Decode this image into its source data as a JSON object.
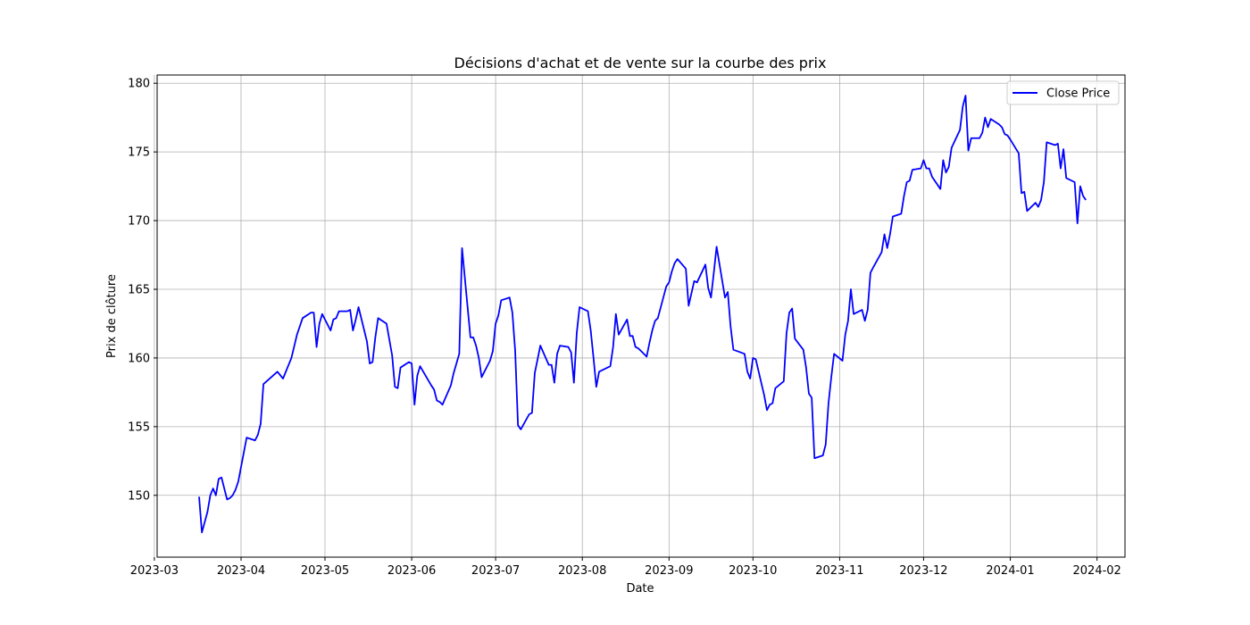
{
  "chart_data": {
    "type": "line",
    "title": "Décisions d'achat et de vente sur la courbe des prix",
    "xlabel": "Date",
    "ylabel": "Prix de clôture",
    "ylim": [
      145.5,
      180.6
    ],
    "xlim": [
      "2023-03-02",
      "2024-02-11"
    ],
    "grid": true,
    "legend_position": "top-right",
    "x_ticks": [
      "2023-03",
      "2023-04",
      "2023-05",
      "2023-06",
      "2023-07",
      "2023-08",
      "2023-09",
      "2023-10",
      "2023-11",
      "2023-12",
      "2024-01",
      "2024-02"
    ],
    "y_ticks": [
      150,
      155,
      160,
      165,
      170,
      175,
      180
    ],
    "series": [
      {
        "name": "Close Price",
        "color": "#0000ff",
        "points": [
          [
            "2023-03-17",
            149.9
          ],
          [
            "2023-03-18",
            147.3
          ],
          [
            "2023-03-20",
            148.8
          ],
          [
            "2023-03-21",
            150.0
          ],
          [
            "2023-03-22",
            150.5
          ],
          [
            "2023-03-23",
            150.0
          ],
          [
            "2023-03-24",
            151.2
          ],
          [
            "2023-03-25",
            151.3
          ],
          [
            "2023-03-27",
            149.7
          ],
          [
            "2023-03-28",
            149.8
          ],
          [
            "2023-03-29",
            150.0
          ],
          [
            "2023-03-30",
            150.4
          ],
          [
            "2023-03-31",
            151.0
          ],
          [
            "2023-04-03",
            154.2
          ],
          [
            "2023-04-06",
            154.0
          ],
          [
            "2023-04-07",
            154.4
          ],
          [
            "2023-04-08",
            155.2
          ],
          [
            "2023-04-09",
            158.1
          ],
          [
            "2023-04-14",
            159.0
          ],
          [
            "2023-04-16",
            158.5
          ],
          [
            "2023-04-19",
            160.0
          ],
          [
            "2023-04-21",
            161.7
          ],
          [
            "2023-04-23",
            162.9
          ],
          [
            "2023-04-26",
            163.3
          ],
          [
            "2023-04-27",
            163.3
          ],
          [
            "2023-04-28",
            160.8
          ],
          [
            "2023-04-29",
            162.5
          ],
          [
            "2023-04-30",
            163.2
          ],
          [
            "2023-05-03",
            162.0
          ],
          [
            "2023-05-04",
            162.8
          ],
          [
            "2023-05-05",
            162.9
          ],
          [
            "2023-05-06",
            163.4
          ],
          [
            "2023-05-09",
            163.4
          ],
          [
            "2023-05-10",
            163.5
          ],
          [
            "2023-05-11",
            162.0
          ],
          [
            "2023-05-12",
            162.8
          ],
          [
            "2023-05-13",
            163.7
          ],
          [
            "2023-05-16",
            161.2
          ],
          [
            "2023-05-17",
            159.6
          ],
          [
            "2023-05-18",
            159.7
          ],
          [
            "2023-05-19",
            161.5
          ],
          [
            "2023-05-20",
            162.9
          ],
          [
            "2023-05-23",
            162.5
          ],
          [
            "2023-05-25",
            160.2
          ],
          [
            "2023-05-26",
            157.9
          ],
          [
            "2023-05-27",
            157.8
          ],
          [
            "2023-05-28",
            159.3
          ],
          [
            "2023-05-31",
            159.7
          ],
          [
            "2023-06-01",
            159.6
          ],
          [
            "2023-06-02",
            156.6
          ],
          [
            "2023-06-03",
            158.7
          ],
          [
            "2023-06-04",
            159.4
          ],
          [
            "2023-06-08",
            158.0
          ],
          [
            "2023-06-09",
            157.7
          ],
          [
            "2023-06-10",
            156.9
          ],
          [
            "2023-06-11",
            156.8
          ],
          [
            "2023-06-12",
            156.6
          ],
          [
            "2023-06-15",
            158.0
          ],
          [
            "2023-06-16",
            158.9
          ],
          [
            "2023-06-18",
            160.3
          ],
          [
            "2023-06-19",
            168.0
          ],
          [
            "2023-06-22",
            161.5
          ],
          [
            "2023-06-23",
            161.5
          ],
          [
            "2023-06-24",
            160.9
          ],
          [
            "2023-06-25",
            160.0
          ],
          [
            "2023-06-26",
            158.6
          ],
          [
            "2023-06-29",
            159.8
          ],
          [
            "2023-06-30",
            160.5
          ],
          [
            "2023-07-01",
            162.5
          ],
          [
            "2023-07-02",
            163.1
          ],
          [
            "2023-07-03",
            164.2
          ],
          [
            "2023-07-06",
            164.4
          ],
          [
            "2023-07-07",
            163.3
          ],
          [
            "2023-07-08",
            160.5
          ],
          [
            "2023-07-09",
            155.1
          ],
          [
            "2023-07-10",
            154.8
          ],
          [
            "2023-07-13",
            155.9
          ],
          [
            "2023-07-14",
            156.0
          ],
          [
            "2023-07-15",
            158.9
          ],
          [
            "2023-07-17",
            160.9
          ],
          [
            "2023-07-20",
            159.5
          ],
          [
            "2023-07-21",
            159.5
          ],
          [
            "2023-07-22",
            158.2
          ],
          [
            "2023-07-23",
            160.3
          ],
          [
            "2023-07-24",
            160.9
          ],
          [
            "2023-07-27",
            160.8
          ],
          [
            "2023-07-28",
            160.4
          ],
          [
            "2023-07-29",
            158.2
          ],
          [
            "2023-07-30",
            161.8
          ],
          [
            "2023-07-31",
            163.7
          ],
          [
            "2023-08-03",
            163.4
          ],
          [
            "2023-08-04",
            162.0
          ],
          [
            "2023-08-05",
            160.0
          ],
          [
            "2023-08-06",
            157.9
          ],
          [
            "2023-08-07",
            159.0
          ],
          [
            "2023-08-10",
            159.3
          ],
          [
            "2023-08-11",
            159.4
          ],
          [
            "2023-08-12",
            160.8
          ],
          [
            "2023-08-13",
            163.2
          ],
          [
            "2023-08-14",
            161.7
          ],
          [
            "2023-08-17",
            162.8
          ],
          [
            "2023-08-18",
            161.6
          ],
          [
            "2023-08-19",
            161.6
          ],
          [
            "2023-08-20",
            160.8
          ],
          [
            "2023-08-21",
            160.7
          ],
          [
            "2023-08-24",
            160.1
          ],
          [
            "2023-08-25",
            161.1
          ],
          [
            "2023-08-26",
            162.0
          ],
          [
            "2023-08-27",
            162.7
          ],
          [
            "2023-08-28",
            162.9
          ],
          [
            "2023-08-31",
            165.2
          ],
          [
            "2023-09-01",
            165.5
          ],
          [
            "2023-09-02",
            166.3
          ],
          [
            "2023-09-03",
            166.9
          ],
          [
            "2023-09-04",
            167.2
          ],
          [
            "2023-09-07",
            166.5
          ],
          [
            "2023-09-08",
            163.8
          ],
          [
            "2023-09-09",
            164.7
          ],
          [
            "2023-09-10",
            165.6
          ],
          [
            "2023-09-11",
            165.5
          ],
          [
            "2023-09-14",
            166.8
          ],
          [
            "2023-09-15",
            165.1
          ],
          [
            "2023-09-16",
            164.4
          ],
          [
            "2023-09-17",
            166.2
          ],
          [
            "2023-09-18",
            168.1
          ],
          [
            "2023-09-21",
            164.4
          ],
          [
            "2023-09-22",
            164.8
          ],
          [
            "2023-09-23",
            162.3
          ],
          [
            "2023-09-24",
            160.6
          ],
          [
            "2023-09-28",
            160.3
          ],
          [
            "2023-09-29",
            159.0
          ],
          [
            "2023-09-30",
            158.5
          ],
          [
            "2023-10-01",
            160.0
          ],
          [
            "2023-10-02",
            159.9
          ],
          [
            "2023-10-05",
            157.3
          ],
          [
            "2023-10-06",
            156.2
          ],
          [
            "2023-10-07",
            156.6
          ],
          [
            "2023-10-08",
            156.7
          ],
          [
            "2023-10-09",
            157.8
          ],
          [
            "2023-10-12",
            158.3
          ],
          [
            "2023-10-13",
            161.8
          ],
          [
            "2023-10-14",
            163.3
          ],
          [
            "2023-10-15",
            163.6
          ],
          [
            "2023-10-16",
            161.4
          ],
          [
            "2023-10-19",
            160.6
          ],
          [
            "2023-10-20",
            159.3
          ],
          [
            "2023-10-21",
            157.4
          ],
          [
            "2023-10-22",
            157.1
          ],
          [
            "2023-10-23",
            152.7
          ],
          [
            "2023-10-26",
            152.9
          ],
          [
            "2023-10-27",
            153.7
          ],
          [
            "2023-10-28",
            156.7
          ],
          [
            "2023-10-29",
            158.6
          ],
          [
            "2023-10-30",
            160.3
          ],
          [
            "2023-11-02",
            159.8
          ],
          [
            "2023-11-03",
            161.7
          ],
          [
            "2023-11-04",
            162.7
          ],
          [
            "2023-11-05",
            165.0
          ],
          [
            "2023-11-06",
            163.2
          ],
          [
            "2023-11-09",
            163.5
          ],
          [
            "2023-11-10",
            162.7
          ],
          [
            "2023-11-11",
            163.5
          ],
          [
            "2023-11-12",
            166.2
          ],
          [
            "2023-11-13",
            166.6
          ],
          [
            "2023-11-16",
            167.7
          ],
          [
            "2023-11-17",
            169.0
          ],
          [
            "2023-11-18",
            168.0
          ],
          [
            "2023-11-19",
            169.0
          ],
          [
            "2023-11-20",
            170.3
          ],
          [
            "2023-11-23",
            170.5
          ],
          [
            "2023-11-24",
            171.8
          ],
          [
            "2023-11-25",
            172.8
          ],
          [
            "2023-11-26",
            172.9
          ],
          [
            "2023-11-27",
            173.7
          ],
          [
            "2023-11-30",
            173.8
          ],
          [
            "2023-12-01",
            174.4
          ],
          [
            "2023-12-02",
            173.8
          ],
          [
            "2023-12-03",
            173.8
          ],
          [
            "2023-12-04",
            173.2
          ],
          [
            "2023-12-07",
            172.3
          ],
          [
            "2023-12-08",
            174.4
          ],
          [
            "2023-12-09",
            173.5
          ],
          [
            "2023-12-10",
            173.9
          ],
          [
            "2023-12-11",
            175.3
          ],
          [
            "2023-12-14",
            176.6
          ],
          [
            "2023-12-15",
            178.3
          ],
          [
            "2023-12-16",
            179.1
          ],
          [
            "2023-12-17",
            175.1
          ],
          [
            "2023-12-18",
            176.0
          ],
          [
            "2023-12-21",
            176.0
          ],
          [
            "2023-12-22",
            176.4
          ],
          [
            "2023-12-23",
            177.5
          ],
          [
            "2023-12-24",
            176.8
          ],
          [
            "2023-12-25",
            177.4
          ],
          [
            "2023-12-28",
            177.0
          ],
          [
            "2023-12-29",
            176.8
          ],
          [
            "2023-12-30",
            176.3
          ],
          [
            "2023-12-31",
            176.2
          ],
          [
            "2024-01-01",
            175.9
          ],
          [
            "2024-01-04",
            174.9
          ],
          [
            "2024-01-05",
            172.0
          ],
          [
            "2024-01-06",
            172.1
          ],
          [
            "2024-01-07",
            170.7
          ],
          [
            "2024-01-10",
            171.3
          ],
          [
            "2024-01-11",
            171.0
          ],
          [
            "2024-01-12",
            171.5
          ],
          [
            "2024-01-13",
            172.8
          ],
          [
            "2024-01-14",
            175.7
          ],
          [
            "2024-01-17",
            175.5
          ],
          [
            "2024-01-18",
            175.6
          ],
          [
            "2024-01-19",
            173.8
          ],
          [
            "2024-01-20",
            175.2
          ],
          [
            "2024-01-21",
            173.1
          ],
          [
            "2024-01-24",
            172.8
          ],
          [
            "2024-01-25",
            169.8
          ],
          [
            "2024-01-26",
            172.5
          ],
          [
            "2024-01-27",
            171.8
          ],
          [
            "2024-01-28",
            171.5
          ]
        ]
      }
    ]
  }
}
